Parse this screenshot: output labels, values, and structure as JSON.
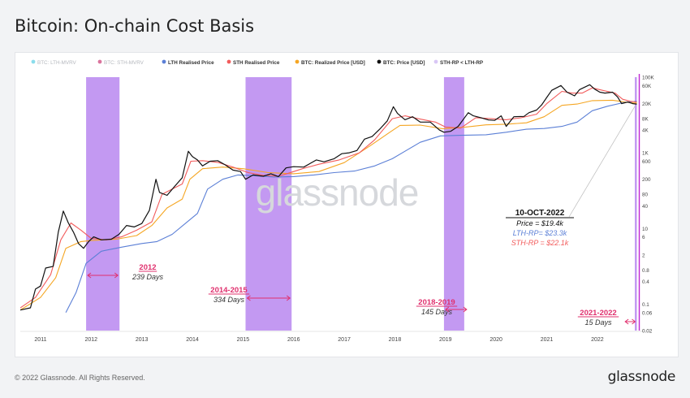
{
  "title": "Bitcoin: On-chain Cost Basis",
  "footer": {
    "copyright": "© 2022 Glassnode. All Rights Reserved.",
    "brand": "glassnode"
  },
  "watermark": "glassnode",
  "chart_data": {
    "type": "line",
    "title": "Bitcoin: On-chain Cost Basis",
    "xlabel": "",
    "ylabel": "",
    "y_scale": "log",
    "x_range": [
      2010.6,
      2022.82
    ],
    "y_range": [
      0.02,
      100000
    ],
    "x_ticks": [
      "2011",
      "2012",
      "2013",
      "2014",
      "2015",
      "2016",
      "2017",
      "2018",
      "2019",
      "2020",
      "2021",
      "2022"
    ],
    "x_tick_values": [
      2011,
      2012,
      2013,
      2014,
      2015,
      2016,
      2017,
      2018,
      2019,
      2020,
      2021,
      2022
    ],
    "y_ticks": [
      "100K",
      "60K",
      "20K",
      "8K",
      "4K",
      "1K",
      "600",
      "200",
      "80",
      "40",
      "10",
      "6",
      "2",
      "0.8",
      "0.4",
      "0.1",
      "0.06",
      "0.02"
    ],
    "y_tick_values": [
      100000,
      60000,
      20000,
      8000,
      4000,
      1000,
      600,
      200,
      80,
      40,
      10,
      6,
      2,
      0.8,
      0.4,
      0.1,
      0.06,
      0.02
    ],
    "legend": [
      {
        "name": "BTC: LTH-MVRV",
        "color": "#3ec6e0",
        "muted": true
      },
      {
        "name": "BTC: STH-MVRV",
        "color": "#c2185b",
        "muted": true
      },
      {
        "name": "LTH Realised Price",
        "color": "#5b7fd6",
        "muted": false
      },
      {
        "name": "STH Realised Price",
        "color": "#f25c5c",
        "muted": false
      },
      {
        "name": "BTC: Realized Price [USD]",
        "color": "#f5a623",
        "muted": false
      },
      {
        "name": "BTC: Price [USD]",
        "color": "#111111",
        "muted": false
      },
      {
        "name": "STH-RP < LTH-RP",
        "color": "#d9c7f5",
        "muted": false
      }
    ],
    "legend_position": "top",
    "series": [
      {
        "name": "BTC: Price [USD]",
        "color": "#111111",
        "points": [
          [
            2010.6,
            0.07
          ],
          [
            2010.8,
            0.08
          ],
          [
            2010.9,
            0.25
          ],
          [
            2011.0,
            0.3
          ],
          [
            2011.1,
            0.9
          ],
          [
            2011.25,
            1.0
          ],
          [
            2011.35,
            8
          ],
          [
            2011.45,
            29
          ],
          [
            2011.55,
            14
          ],
          [
            2011.65,
            8
          ],
          [
            2011.75,
            4
          ],
          [
            2011.85,
            3
          ],
          [
            2011.95,
            4.5
          ],
          [
            2012.05,
            6
          ],
          [
            2012.2,
            5
          ],
          [
            2012.4,
            5.2
          ],
          [
            2012.55,
            7
          ],
          [
            2012.7,
            12
          ],
          [
            2012.85,
            11
          ],
          [
            2013.0,
            13.5
          ],
          [
            2013.15,
            30
          ],
          [
            2013.28,
            200
          ],
          [
            2013.35,
            90
          ],
          [
            2013.5,
            75
          ],
          [
            2013.65,
            130
          ],
          [
            2013.8,
            220
          ],
          [
            2013.92,
            1100
          ],
          [
            2014.0,
            800
          ],
          [
            2014.1,
            650
          ],
          [
            2014.2,
            450
          ],
          [
            2014.35,
            600
          ],
          [
            2014.5,
            620
          ],
          [
            2014.65,
            480
          ],
          [
            2014.8,
            350
          ],
          [
            2014.95,
            320
          ],
          [
            2015.05,
            200
          ],
          [
            2015.2,
            260
          ],
          [
            2015.4,
            240
          ],
          [
            2015.55,
            280
          ],
          [
            2015.7,
            235
          ],
          [
            2015.85,
            400
          ],
          [
            2016.0,
            430
          ],
          [
            2016.2,
            420
          ],
          [
            2016.45,
            650
          ],
          [
            2016.6,
            580
          ],
          [
            2016.8,
            700
          ],
          [
            2016.95,
            950
          ],
          [
            2017.1,
            1000
          ],
          [
            2017.25,
            1150
          ],
          [
            2017.4,
            2300
          ],
          [
            2017.55,
            2700
          ],
          [
            2017.7,
            4200
          ],
          [
            2017.85,
            7000
          ],
          [
            2017.97,
            16500
          ],
          [
            2018.05,
            11000
          ],
          [
            2018.2,
            7500
          ],
          [
            2018.35,
            9000
          ],
          [
            2018.5,
            6500
          ],
          [
            2018.7,
            6500
          ],
          [
            2018.88,
            4000
          ],
          [
            2018.97,
            3500
          ],
          [
            2019.1,
            3700
          ],
          [
            2019.25,
            5000
          ],
          [
            2019.45,
            11500
          ],
          [
            2019.55,
            9500
          ],
          [
            2019.7,
            8500
          ],
          [
            2019.85,
            7400
          ],
          [
            2019.97,
            7200
          ],
          [
            2020.1,
            9500
          ],
          [
            2020.2,
            5000
          ],
          [
            2020.35,
            9000
          ],
          [
            2020.55,
            9200
          ],
          [
            2020.65,
            11500
          ],
          [
            2020.8,
            13500
          ],
          [
            2020.9,
            18500
          ],
          [
            2021.0,
            29000
          ],
          [
            2021.1,
            45000
          ],
          [
            2021.28,
            60000
          ],
          [
            2021.4,
            40000
          ],
          [
            2021.55,
            32000
          ],
          [
            2021.65,
            47000
          ],
          [
            2021.85,
            63000
          ],
          [
            2021.95,
            48000
          ],
          [
            2022.05,
            40000
          ],
          [
            2022.15,
            38000
          ],
          [
            2022.3,
            40000
          ],
          [
            2022.4,
            30000
          ],
          [
            2022.48,
            20000
          ],
          [
            2022.6,
            22000
          ],
          [
            2022.7,
            20000
          ],
          [
            2022.78,
            19400
          ]
        ]
      },
      {
        "name": "BTC: Realized Price [USD]",
        "color": "#f5a623",
        "points": [
          [
            2010.6,
            0.07
          ],
          [
            2011.0,
            0.15
          ],
          [
            2011.3,
            0.5
          ],
          [
            2011.5,
            3
          ],
          [
            2011.8,
            4.5
          ],
          [
            2012.0,
            4.8
          ],
          [
            2012.5,
            5.2
          ],
          [
            2012.9,
            6.5
          ],
          [
            2013.2,
            12
          ],
          [
            2013.5,
            35
          ],
          [
            2013.8,
            60
          ],
          [
            2013.95,
            200
          ],
          [
            2014.2,
            380
          ],
          [
            2014.6,
            420
          ],
          [
            2015.0,
            380
          ],
          [
            2015.5,
            300
          ],
          [
            2016.0,
            280
          ],
          [
            2016.5,
            320
          ],
          [
            2017.0,
            550
          ],
          [
            2017.5,
            1500
          ],
          [
            2017.9,
            3500
          ],
          [
            2018.1,
            5300
          ],
          [
            2018.5,
            5400
          ],
          [
            2018.95,
            4300
          ],
          [
            2019.4,
            4800
          ],
          [
            2019.8,
            5500
          ],
          [
            2020.2,
            5700
          ],
          [
            2020.6,
            6200
          ],
          [
            2020.95,
            9000
          ],
          [
            2021.3,
            18000
          ],
          [
            2021.6,
            19500
          ],
          [
            2021.9,
            24000
          ],
          [
            2022.3,
            24500
          ],
          [
            2022.6,
            21500
          ],
          [
            2022.78,
            20500
          ]
        ]
      },
      {
        "name": "LTH Realised Price",
        "color": "#5b7fd6",
        "points": [
          [
            2011.5,
            0.06
          ],
          [
            2011.7,
            0.2
          ],
          [
            2011.9,
            1.2
          ],
          [
            2012.2,
            2.5
          ],
          [
            2012.6,
            3.2
          ],
          [
            2013.0,
            4
          ],
          [
            2013.3,
            4.5
          ],
          [
            2013.6,
            7
          ],
          [
            2013.9,
            15
          ],
          [
            2014.1,
            25
          ],
          [
            2014.3,
            110
          ],
          [
            2014.6,
            200
          ],
          [
            2014.9,
            260
          ],
          [
            2015.2,
            250
          ],
          [
            2015.6,
            230
          ],
          [
            2016.0,
            235
          ],
          [
            2016.4,
            260
          ],
          [
            2016.8,
            300
          ],
          [
            2017.2,
            330
          ],
          [
            2017.6,
            450
          ],
          [
            2017.95,
            700
          ],
          [
            2018.2,
            1100
          ],
          [
            2018.5,
            1900
          ],
          [
            2018.9,
            2800
          ],
          [
            2019.3,
            2900
          ],
          [
            2019.8,
            3000
          ],
          [
            2020.2,
            3500
          ],
          [
            2020.6,
            4200
          ],
          [
            2020.95,
            4400
          ],
          [
            2021.3,
            5000
          ],
          [
            2021.6,
            6500
          ],
          [
            2021.9,
            13000
          ],
          [
            2022.2,
            17000
          ],
          [
            2022.5,
            21000
          ],
          [
            2022.78,
            23300
          ]
        ]
      },
      {
        "name": "STH Realised Price",
        "color": "#f25c5c",
        "points": [
          [
            2010.6,
            0.08
          ],
          [
            2010.9,
            0.15
          ],
          [
            2011.2,
            0.6
          ],
          [
            2011.4,
            5
          ],
          [
            2011.6,
            14
          ],
          [
            2011.8,
            9
          ],
          [
            2012.0,
            5.5
          ],
          [
            2012.3,
            5
          ],
          [
            2012.6,
            6
          ],
          [
            2012.9,
            9
          ],
          [
            2013.2,
            15
          ],
          [
            2013.4,
            80
          ],
          [
            2013.6,
            110
          ],
          [
            2013.8,
            150
          ],
          [
            2013.97,
            600
          ],
          [
            2014.2,
            620
          ],
          [
            2014.5,
            560
          ],
          [
            2014.8,
            420
          ],
          [
            2015.1,
            300
          ],
          [
            2015.4,
            255
          ],
          [
            2015.7,
            240
          ],
          [
            2015.9,
            290
          ],
          [
            2016.2,
            390
          ],
          [
            2016.5,
            500
          ],
          [
            2016.9,
            650
          ],
          [
            2017.3,
            1000
          ],
          [
            2017.6,
            2200
          ],
          [
            2017.95,
            8000
          ],
          [
            2018.2,
            9500
          ],
          [
            2018.5,
            7800
          ],
          [
            2018.8,
            6500
          ],
          [
            2019.0,
            4800
          ],
          [
            2019.3,
            4500
          ],
          [
            2019.6,
            8500
          ],
          [
            2019.9,
            8000
          ],
          [
            2020.2,
            7500
          ],
          [
            2020.5,
            8500
          ],
          [
            2020.8,
            10500
          ],
          [
            2021.0,
            20000
          ],
          [
            2021.3,
            42000
          ],
          [
            2021.5,
            38000
          ],
          [
            2021.7,
            38000
          ],
          [
            2021.9,
            52000
          ],
          [
            2022.1,
            45000
          ],
          [
            2022.35,
            38000
          ],
          [
            2022.5,
            26000
          ],
          [
            2022.65,
            23000
          ],
          [
            2022.78,
            22100
          ]
        ]
      }
    ],
    "shaded_regions": [
      {
        "start": 2011.9,
        "end": 2012.56,
        "label": "2012",
        "days": "239 Days"
      },
      {
        "start": 2015.05,
        "end": 2015.96,
        "label": "2014-2015",
        "days": "334 Days"
      },
      {
        "start": 2018.97,
        "end": 2019.37,
        "label": "2018-2019",
        "days": "145 Days"
      },
      {
        "start": 2022.74,
        "end": 2022.78,
        "label": "2021-2022",
        "days": "15 Days"
      }
    ],
    "annotation": {
      "date": "10-OCT-2022",
      "price": "Price = $19.4k",
      "lth": "LTH-RP= $23.3k",
      "sth": "STH-RP = $22.1k",
      "at": [
        2022.78,
        19400
      ]
    }
  }
}
